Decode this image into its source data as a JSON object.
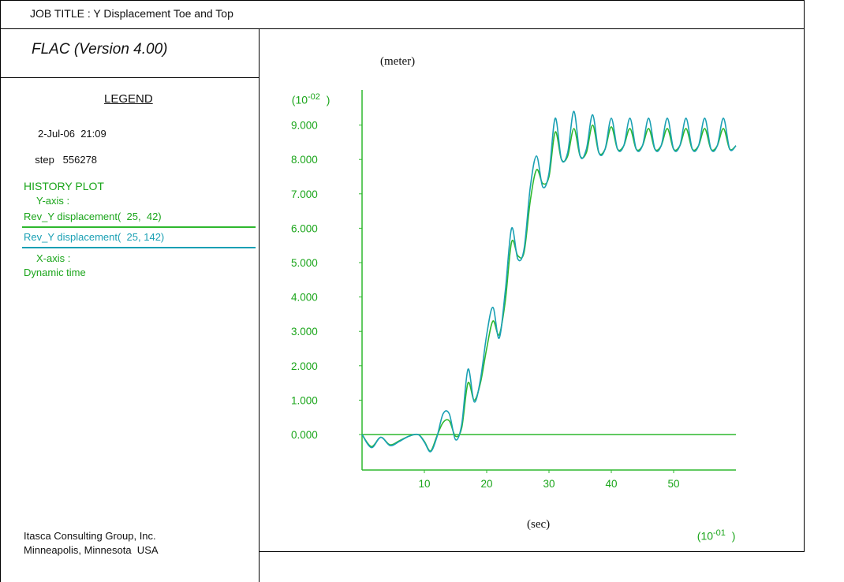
{
  "header": {
    "job_title": "JOB TITLE : Y Displacement Toe and Top"
  },
  "panel": {
    "program": "FLAC (Version 4.00)",
    "legend_heading": "LEGEND",
    "date": "2-Jul-06  21:09",
    "step_label": "step",
    "step_value": "556278",
    "plot_type": "HISTORY PLOT",
    "y_axis_label": "Y-axis :",
    "series": [
      {
        "name": "Rev_Y displacement(  25,  42)",
        "color": "#2eb82e"
      },
      {
        "name": "Rev_Y displacement(  25, 142)",
        "color": "#1aa0b4"
      }
    ],
    "x_axis_label": "X-axis :",
    "x_axis_quantity": "Dynamic time",
    "company": "Itasca Consulting Group, Inc.",
    "location": "Minneapolis, Minnesota  USA"
  },
  "chart_data": {
    "type": "line",
    "ylabel": "(meter)",
    "xlabel": "(sec)",
    "y_multiplier": {
      "base": "(10",
      "exp": "-02",
      "close": ")"
    },
    "x_multiplier": {
      "base": "(10",
      "exp": "-01",
      "close": ")"
    },
    "ylim": [
      -1.0,
      10.0
    ],
    "xlim": [
      0,
      60
    ],
    "y_ticks": [
      0,
      1,
      2,
      3,
      4,
      5,
      6,
      7,
      8,
      9
    ],
    "y_tick_labels": [
      "0.000",
      "1.000",
      "2.000",
      "3.000",
      "4.000",
      "5.000",
      "6.000",
      "7.000",
      "8.000",
      "9.000"
    ],
    "x_ticks": [
      10,
      20,
      30,
      40,
      50
    ],
    "x_tick_labels": [
      "10",
      "20",
      "30",
      "40",
      "50"
    ],
    "grid": false,
    "zero_line": true,
    "series": [
      {
        "name": "Rev_Y displacement(  25,  42)",
        "color": "#2eb82e",
        "x": [
          0,
          1.5,
          3,
          4.5,
          6,
          7.5,
          9,
          10,
          11,
          12,
          13,
          14,
          15,
          16,
          17,
          18,
          19,
          20,
          21,
          22,
          23,
          24,
          25,
          26,
          27,
          28,
          29,
          30,
          31,
          32,
          33,
          34,
          35,
          36,
          37,
          38,
          39,
          40,
          41,
          42,
          43,
          44,
          45,
          46,
          47,
          48,
          49,
          50,
          51,
          52,
          53,
          54,
          55,
          56,
          57,
          58,
          59,
          60
        ],
        "y": [
          0,
          -0.35,
          -0.08,
          -0.3,
          -0.18,
          -0.05,
          0,
          -0.2,
          -0.48,
          -0.05,
          0.35,
          0.4,
          -0.05,
          0.2,
          1.5,
          1.0,
          1.5,
          2.5,
          3.3,
          2.9,
          3.9,
          5.6,
          5.2,
          5.3,
          6.8,
          7.7,
          7.3,
          7.5,
          8.8,
          8.0,
          8.1,
          8.9,
          8.1,
          8.2,
          9.0,
          8.2,
          8.3,
          8.95,
          8.3,
          8.4,
          8.9,
          8.3,
          8.4,
          8.9,
          8.3,
          8.4,
          8.9,
          8.3,
          8.4,
          8.9,
          8.3,
          8.4,
          8.9,
          8.3,
          8.4,
          8.9,
          8.3,
          8.4
        ]
      },
      {
        "name": "Rev_Y displacement(  25, 142)",
        "color": "#1aa0b4",
        "x": [
          0,
          1.5,
          3,
          4.5,
          6,
          7.5,
          9,
          10,
          11,
          12,
          13,
          14,
          15,
          16,
          17,
          18,
          19,
          20,
          21,
          22,
          23,
          24,
          25,
          26,
          27,
          28,
          29,
          30,
          31,
          32,
          33,
          34,
          35,
          36,
          37,
          38,
          39,
          40,
          41,
          42,
          43,
          44,
          45,
          46,
          47,
          48,
          49,
          50,
          51,
          52,
          53,
          54,
          55,
          56,
          57,
          58,
          59,
          60
        ],
        "y": [
          0,
          -0.38,
          -0.08,
          -0.32,
          -0.2,
          -0.05,
          0,
          -0.22,
          -0.5,
          -0.08,
          0.6,
          0.6,
          -0.15,
          0.3,
          1.9,
          0.95,
          1.6,
          2.9,
          3.7,
          2.8,
          4.2,
          6.0,
          5.1,
          5.4,
          7.2,
          8.1,
          7.2,
          7.6,
          9.2,
          8.0,
          8.2,
          9.4,
          8.1,
          8.3,
          9.3,
          8.2,
          8.3,
          9.2,
          8.3,
          8.4,
          9.2,
          8.3,
          8.4,
          9.2,
          8.3,
          8.4,
          9.2,
          8.3,
          8.4,
          9.2,
          8.3,
          8.4,
          9.2,
          8.3,
          8.4,
          9.2,
          8.3,
          8.4
        ]
      }
    ]
  }
}
